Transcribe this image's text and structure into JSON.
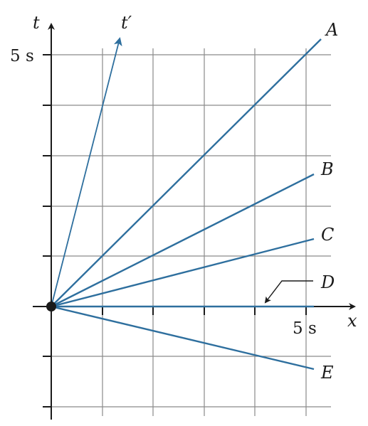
{
  "axes": {
    "t_label": "t",
    "x_label": "x",
    "t_prime_label": "t′",
    "t_tick_label": "5 s",
    "x_tick_label": "5 s",
    "x_range": [
      -1,
      6
    ],
    "t_range": [
      -2,
      5.5
    ],
    "grid": true
  },
  "colors": {
    "line": "#2e6f9e",
    "grid": "#8a8a8a",
    "axis": "#1a1a1a",
    "origin": "#1a1a1a"
  },
  "lines": [
    {
      "label": "A",
      "end": [
        5.3,
        5.3
      ]
    },
    {
      "label": "B",
      "end": [
        5.3,
        2.6
      ]
    },
    {
      "label": "C",
      "end": [
        5.3,
        1.33
      ]
    },
    {
      "label": "D",
      "end": [
        5.3,
        0
      ]
    },
    {
      "label": "E",
      "end": [
        5.3,
        -1.25
      ]
    }
  ],
  "t_prime_end": [
    1.3,
    5.3
  ]
}
